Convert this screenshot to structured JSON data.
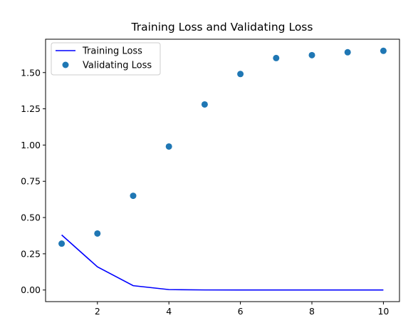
{
  "chart_data": {
    "type": "line",
    "title": "Training Loss and Validating Loss",
    "xlabel": "",
    "ylabel": "",
    "xlim": [
      0.55,
      10.45
    ],
    "ylim": [
      -0.08,
      1.73
    ],
    "x_ticks": [
      2,
      4,
      6,
      8,
      10
    ],
    "x_tick_labels": [
      "2",
      "4",
      "6",
      "8",
      "10"
    ],
    "y_ticks": [
      0.0,
      0.25,
      0.5,
      0.75,
      1.0,
      1.25,
      1.5
    ],
    "y_tick_labels": [
      "0.00",
      "0.25",
      "0.50",
      "0.75",
      "1.00",
      "1.25",
      "1.50"
    ],
    "grid": false,
    "legend_position": "top-left",
    "x": [
      1,
      2,
      3,
      4,
      5,
      6,
      7,
      8,
      9,
      10
    ],
    "series": [
      {
        "name": "Training Loss",
        "style": "line",
        "color": "#0000ff",
        "values": [
          0.38,
          0.16,
          0.03,
          0.003,
          0.0005,
          0.0002,
          0.0001,
          0.0001,
          0.0001,
          0.0001
        ]
      },
      {
        "name": "Validating Loss",
        "style": "markers",
        "color": "#1f77b4",
        "values": [
          0.32,
          0.39,
          0.65,
          0.99,
          1.28,
          1.49,
          1.6,
          1.62,
          1.64,
          1.65
        ]
      }
    ]
  }
}
